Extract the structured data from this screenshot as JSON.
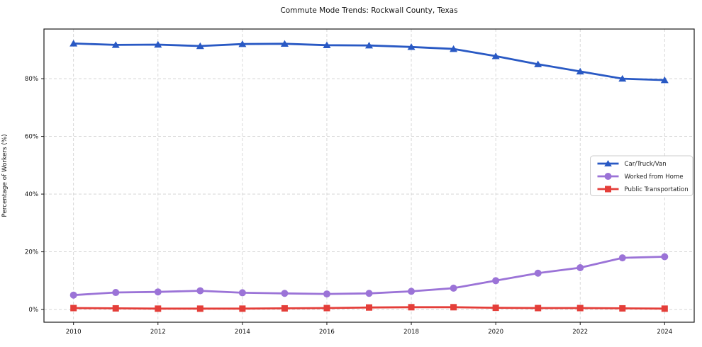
{
  "chart_data": {
    "type": "line",
    "title": "Commute Mode Trends: Rockwall County, Texas",
    "xlabel": "",
    "ylabel": "Percentage of Workers (%)",
    "x": [
      2010,
      2011,
      2012,
      2013,
      2014,
      2015,
      2016,
      2017,
      2018,
      2019,
      2020,
      2021,
      2022,
      2023,
      2024
    ],
    "x_ticks": [
      2010,
      2012,
      2014,
      2016,
      2018,
      2020,
      2022,
      2024
    ],
    "x_tick_labels": [
      "2010",
      "2012",
      "2014",
      "2016",
      "2018",
      "2020",
      "2022",
      "2024"
    ],
    "y_ticks": [
      0,
      20,
      40,
      60,
      80
    ],
    "y_tick_labels": [
      "0%",
      "20%",
      "40%",
      "60%",
      "80%"
    ],
    "xlim": [
      2009.3,
      2024.7
    ],
    "ylim": [
      -4.4,
      97.2
    ],
    "grid": true,
    "grid_color": "#cfcfcf",
    "spine_color": "#1a1a1a",
    "legend_position": "center right",
    "series": [
      {
        "name": "Car/Truck/Van",
        "marker": "triangle",
        "color": "#2959c4",
        "values": [
          92.2,
          91.7,
          91.8,
          91.3,
          92.0,
          92.1,
          91.6,
          91.5,
          91.0,
          90.3,
          87.8,
          85.0,
          82.5,
          80.0,
          79.5
        ]
      },
      {
        "name": "Worked from Home",
        "marker": "circle",
        "color": "#9b73d7",
        "values": [
          5.0,
          5.9,
          6.1,
          6.5,
          5.8,
          5.6,
          5.4,
          5.6,
          6.3,
          7.4,
          10.0,
          12.6,
          14.5,
          17.9,
          18.3
        ]
      },
      {
        "name": "Public Transportation",
        "marker": "square",
        "color": "#e43e39",
        "values": [
          0.5,
          0.4,
          0.3,
          0.3,
          0.3,
          0.4,
          0.5,
          0.7,
          0.8,
          0.8,
          0.6,
          0.5,
          0.5,
          0.4,
          0.3
        ]
      }
    ]
  }
}
